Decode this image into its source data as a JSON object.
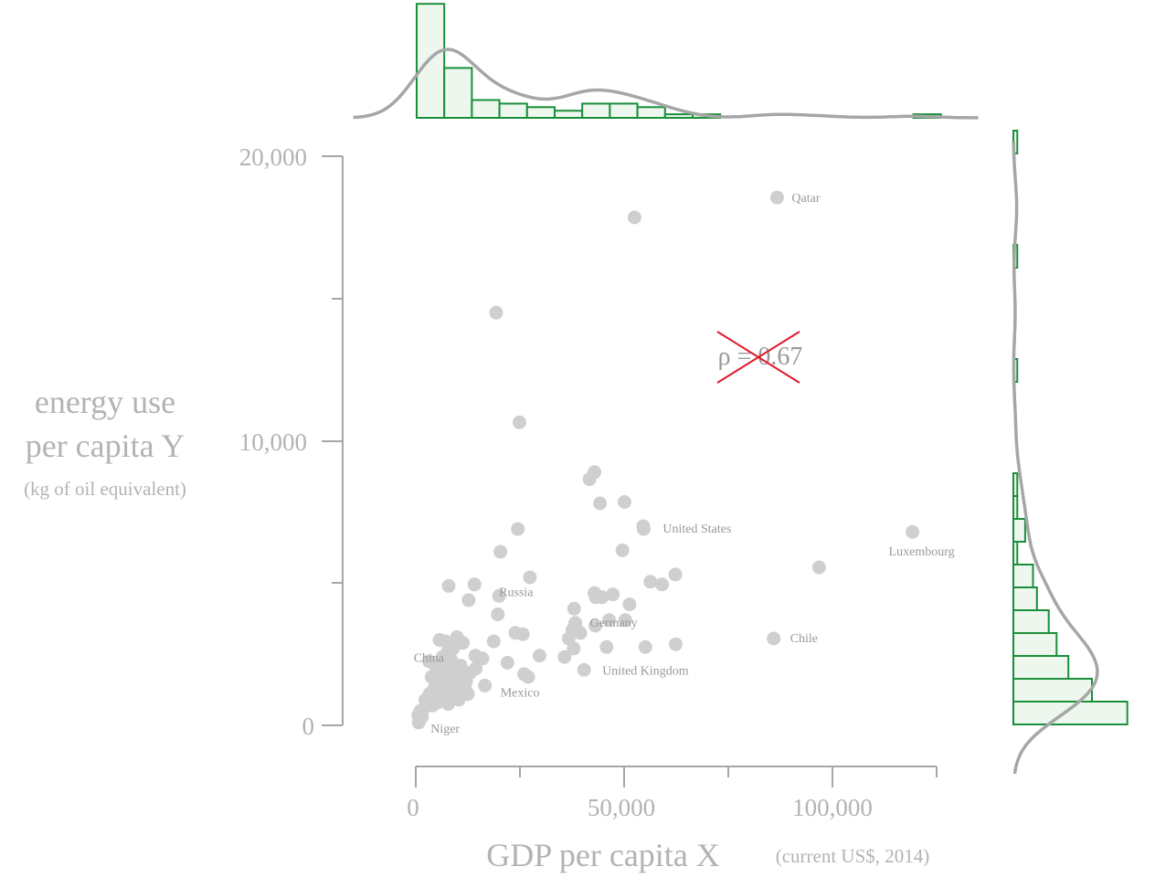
{
  "chart_data": {
    "type": "scatter",
    "title": "",
    "xlabel": "GDP per capita X",
    "xlabel_unit": "(current US$, 2014)",
    "ylabel_lines": [
      "energy use",
      "per capita Y"
    ],
    "ylabel_unit": "(kg of oil equivalent)",
    "xlim": [
      0,
      125000
    ],
    "ylim": [
      0,
      20000
    ],
    "x_tick_labels": [
      "0",
      "50,000",
      "100,000"
    ],
    "y_tick_labels": [
      "0",
      "10,000",
      "20,000"
    ],
    "annotation": {
      "text": "ρ = 0.67",
      "crossed_out": true
    },
    "point_color": "#cfcfcf",
    "hist_edge_color": "#1a8f3a",
    "hist_fill_color": "#edf7ee",
    "kde_color": "#a6a6a6",
    "cross_color": "#e0192a",
    "points": [
      {
        "x": 86700,
        "y": 18550,
        "label": "Qatar"
      },
      {
        "x": 52500,
        "y": 17850
      },
      {
        "x": 19300,
        "y": 14500
      },
      {
        "x": 24900,
        "y": 10650
      },
      {
        "x": 42900,
        "y": 8900
      },
      {
        "x": 41700,
        "y": 8650
      },
      {
        "x": 44200,
        "y": 7800
      },
      {
        "x": 50100,
        "y": 7850
      },
      {
        "x": 54600,
        "y": 7000
      },
      {
        "x": 54700,
        "y": 6900,
        "label": "United States"
      },
      {
        "x": 24500,
        "y": 6900
      },
      {
        "x": 119200,
        "y": 6800,
        "label": "Luxembourg"
      },
      {
        "x": 20300,
        "y": 6100
      },
      {
        "x": 49600,
        "y": 6150
      },
      {
        "x": 96800,
        "y": 5550
      },
      {
        "x": 27400,
        "y": 5200
      },
      {
        "x": 62300,
        "y": 5300
      },
      {
        "x": 56300,
        "y": 5050
      },
      {
        "x": 59100,
        "y": 4950
      },
      {
        "x": 7900,
        "y": 4900
      },
      {
        "x": 14100,
        "y": 4950
      },
      {
        "x": 20000,
        "y": 4550,
        "label": "Russia"
      },
      {
        "x": 12700,
        "y": 4400
      },
      {
        "x": 42900,
        "y": 4650
      },
      {
        "x": 43200,
        "y": 4500
      },
      {
        "x": 44700,
        "y": 4500
      },
      {
        "x": 47300,
        "y": 4600
      },
      {
        "x": 51300,
        "y": 4250
      },
      {
        "x": 19700,
        "y": 3900
      },
      {
        "x": 38000,
        "y": 4100
      },
      {
        "x": 38300,
        "y": 3600,
        "label": "Germany"
      },
      {
        "x": 46400,
        "y": 3700
      },
      {
        "x": 43100,
        "y": 3500
      },
      {
        "x": 50300,
        "y": 3700
      },
      {
        "x": 37600,
        "y": 3350
      },
      {
        "x": 39500,
        "y": 3250
      },
      {
        "x": 36700,
        "y": 3050
      },
      {
        "x": 23900,
        "y": 3250
      },
      {
        "x": 25700,
        "y": 3200
      },
      {
        "x": 37900,
        "y": 2700
      },
      {
        "x": 18700,
        "y": 2950
      },
      {
        "x": 45800,
        "y": 2750
      },
      {
        "x": 55100,
        "y": 2750
      },
      {
        "x": 62400,
        "y": 2850
      },
      {
        "x": 85900,
        "y": 3050,
        "label": "Chile"
      },
      {
        "x": 29700,
        "y": 2450
      },
      {
        "x": 35700,
        "y": 2400
      },
      {
        "x": 22000,
        "y": 2200
      },
      {
        "x": 26000,
        "y": 1800
      },
      {
        "x": 40400,
        "y": 1950
      },
      {
        "x": 27000,
        "y": 1700
      },
      {
        "x": 14300,
        "y": 2450
      },
      {
        "x": 16000,
        "y": 2350
      },
      {
        "x": 11300,
        "y": 2900
      },
      {
        "x": 9900,
        "y": 3100
      },
      {
        "x": 5700,
        "y": 3000
      },
      {
        "x": 7100,
        "y": 2950
      },
      {
        "x": 9000,
        "y": 2700
      },
      {
        "x": 7700,
        "y": 2600
      },
      {
        "x": 6400,
        "y": 2400
      },
      {
        "x": 8500,
        "y": 2300
      },
      {
        "x": 10800,
        "y": 2100
      },
      {
        "x": 14400,
        "y": 2000
      },
      {
        "x": 13100,
        "y": 1850
      },
      {
        "x": 11300,
        "y": 1700
      },
      {
        "x": 7900,
        "y": 2000
      },
      {
        "x": 6000,
        "y": 1900
      },
      {
        "x": 3200,
        "y": 2250
      },
      {
        "x": 4700,
        "y": 2100
      },
      {
        "x": 7600,
        "y": 1650
      },
      {
        "x": 8900,
        "y": 1500
      },
      {
        "x": 5100,
        "y": 1500
      },
      {
        "x": 3800,
        "y": 1700
      },
      {
        "x": 6900,
        "y": 1350
      },
      {
        "x": 9600,
        "y": 1250
      },
      {
        "x": 12500,
        "y": 1100
      },
      {
        "x": 16600,
        "y": 1400,
        "label": "Mexico"
      },
      {
        "x": 5800,
        "y": 1200
      },
      {
        "x": 3300,
        "y": 1100
      },
      {
        "x": 4400,
        "y": 950
      },
      {
        "x": 2300,
        "y": 900
      },
      {
        "x": 7800,
        "y": 750
      },
      {
        "x": 2800,
        "y": 700
      },
      {
        "x": 1700,
        "y": 550
      },
      {
        "x": 1100,
        "y": 500
      },
      {
        "x": 600,
        "y": 350
      },
      {
        "x": 1500,
        "y": 300
      },
      {
        "x": 2200,
        "y": 650
      },
      {
        "x": 3100,
        "y": 850
      },
      {
        "x": 4100,
        "y": 700
      },
      {
        "x": 5200,
        "y": 800
      },
      {
        "x": 700,
        "y": 100,
        "label": "Niger"
      },
      {
        "x": 1200,
        "y": 250
      },
      {
        "x": 9100,
        "y": 1050
      },
      {
        "x": 10700,
        "y": 1350
      },
      {
        "x": 12100,
        "y": 1550
      },
      {
        "x": 11900,
        "y": 1250
      },
      {
        "x": 10300,
        "y": 900
      },
      {
        "x": 6300,
        "y": 1000
      },
      {
        "x": 4400,
        "y": 1300
      },
      {
        "x": 8300,
        "y": 1750
      },
      {
        "x": 10000,
        "y": 1950
      }
    ],
    "extra_labels": [
      {
        "text": "China",
        "at_x": 3000,
        "at_y": 2300
      },
      {
        "text": "United Kingdom",
        "at_x": 40400,
        "at_y": 1950
      }
    ],
    "top_histogram_counts": [
      32,
      14,
      5,
      4,
      3,
      2,
      4,
      4,
      3,
      1,
      1,
      0,
      0,
      0,
      0,
      0,
      0,
      0,
      1
    ],
    "right_histogram_counts": [
      29,
      20,
      14,
      11,
      9,
      6,
      5,
      1,
      3,
      1,
      1,
      0,
      0,
      0,
      0,
      1,
      0,
      0,
      0,
      0,
      1,
      0,
      0,
      0,
      0,
      1
    ]
  }
}
